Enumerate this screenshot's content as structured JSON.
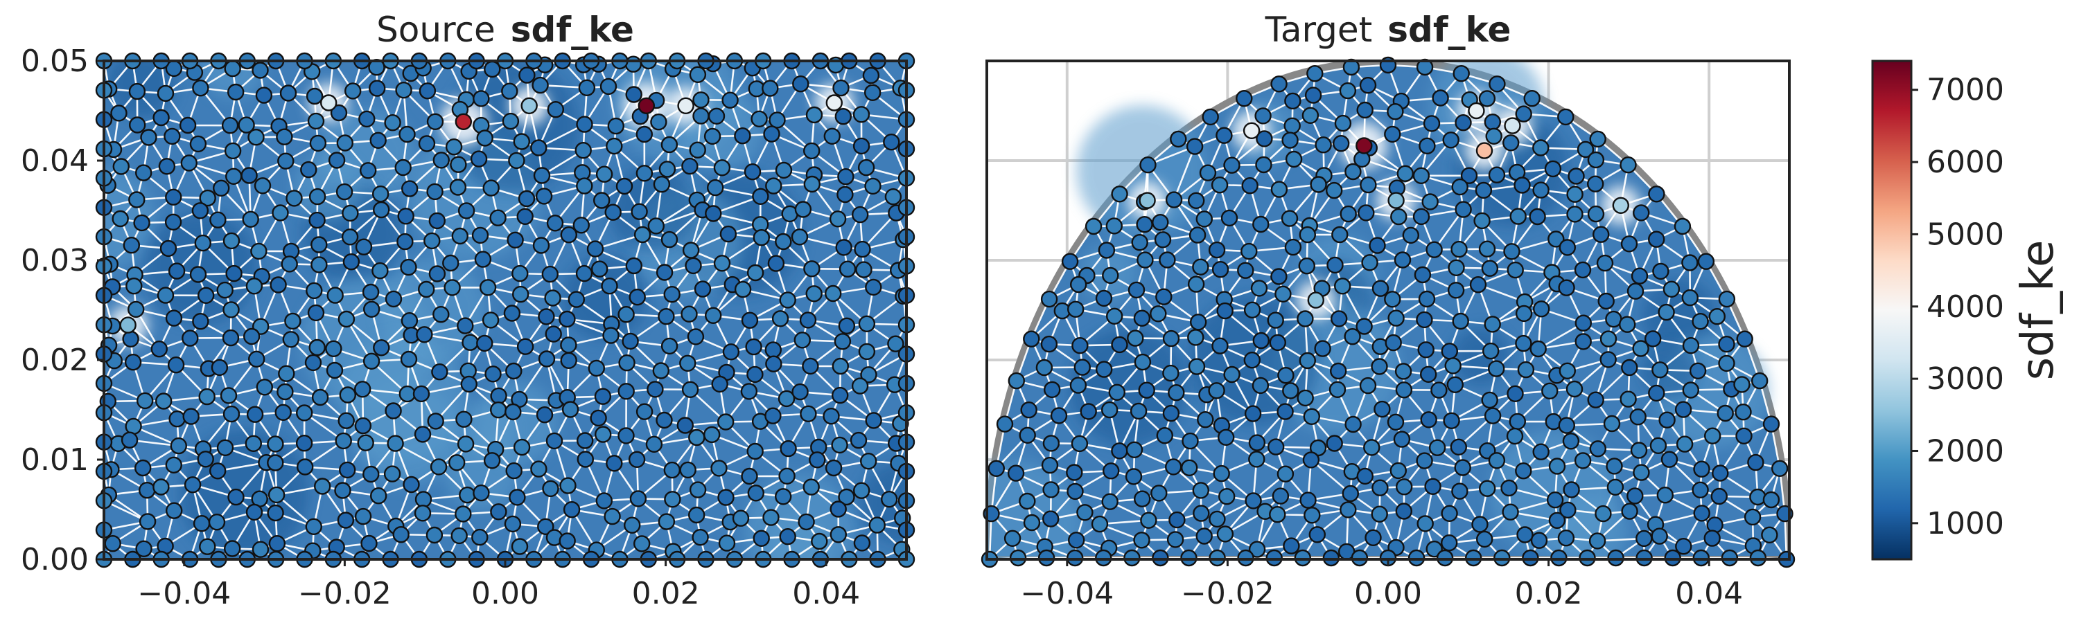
{
  "chart_data": [
    {
      "type": "scatter",
      "title_prefix": "Source",
      "title_bold": "sdf_ke",
      "xlim": [
        -0.05,
        0.05
      ],
      "ylim": [
        0.0,
        0.05
      ],
      "xticks": [
        "−0.04",
        "−0.02",
        "0.00",
        "0.02",
        "0.04"
      ],
      "xtick_values": [
        -0.04,
        -0.02,
        0.0,
        0.02,
        0.04
      ],
      "yticks": [
        "0.00",
        "0.01",
        "0.02",
        "0.03",
        "0.04",
        "0.05"
      ],
      "ytick_values": [
        0.0,
        0.01,
        0.02,
        0.03,
        0.04,
        0.05
      ],
      "domain_shape": "rectangle",
      "grid": false,
      "background_value": 1400,
      "hot_points": [
        {
          "x": 0.0176,
          "y": 0.0455,
          "v": 7300
        },
        {
          "x": -0.0052,
          "y": 0.0439,
          "v": 6600
        },
        {
          "x": 0.0225,
          "y": 0.0455,
          "v": 3600
        },
        {
          "x": -0.022,
          "y": 0.0458,
          "v": 3400
        },
        {
          "x": 0.041,
          "y": 0.0458,
          "v": 3700
        },
        {
          "x": 0.003,
          "y": 0.0455,
          "v": 2600
        },
        {
          "x": -0.047,
          "y": 0.0235,
          "v": 2400
        }
      ]
    },
    {
      "type": "scatter",
      "title_prefix": "Target",
      "title_bold": "sdf_ke",
      "xlim": [
        -0.05,
        0.05
      ],
      "ylim": [
        0.0,
        0.05
      ],
      "xticks": [
        "−0.04",
        "−0.02",
        "0.00",
        "0.02",
        "0.04"
      ],
      "xtick_values": [
        -0.04,
        -0.02,
        0.0,
        0.02,
        0.04
      ],
      "domain_shape": "semi-ellipse",
      "grid": true,
      "background_value": 1400,
      "hot_points": [
        {
          "x": -0.003,
          "y": 0.0415,
          "v": 7200
        },
        {
          "x": 0.012,
          "y": 0.041,
          "v": 5000
        },
        {
          "x": 0.011,
          "y": 0.045,
          "v": 3700
        },
        {
          "x": -0.017,
          "y": 0.043,
          "v": 3700
        },
        {
          "x": 0.0155,
          "y": 0.0435,
          "v": 3300
        },
        {
          "x": 0.029,
          "y": 0.0355,
          "v": 2800
        },
        {
          "x": -0.03,
          "y": 0.036,
          "v": 2500
        },
        {
          "x": 0.001,
          "y": 0.036,
          "v": 2400
        },
        {
          "x": -0.009,
          "y": 0.026,
          "v": 2500
        }
      ]
    }
  ],
  "colorbar": {
    "label": "sdf_ke",
    "vmin": 500,
    "vmax": 7400,
    "ticks": [
      "1000",
      "2000",
      "3000",
      "4000",
      "5000",
      "6000",
      "7000"
    ],
    "tick_values": [
      1000,
      2000,
      3000,
      4000,
      5000,
      6000,
      7000
    ],
    "colormap": "RdBu_r"
  }
}
